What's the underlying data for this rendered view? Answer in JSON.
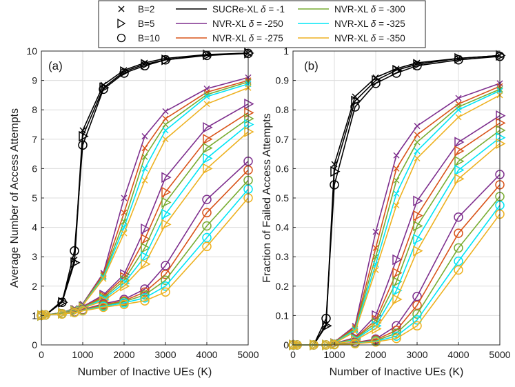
{
  "chart_data": [
    {
      "type": "line",
      "panel_label": "(a)",
      "xlabel": "Number of Inactive UEs (K)",
      "ylabel": "Average Number of Access Attempts",
      "x": [
        0,
        100,
        500,
        800,
        1000,
        1500,
        2000,
        2500,
        3000,
        4000,
        5000
      ],
      "xlim": [
        0,
        5000
      ],
      "ylim": [
        0,
        10
      ],
      "xticks": [
        "0",
        "1000",
        "2000",
        "3000",
        "4000",
        "5000"
      ],
      "yticks": [
        "0",
        "1",
        "2",
        "3",
        "4",
        "5",
        "6",
        "7",
        "8",
        "9",
        "10"
      ],
      "grid": true,
      "series": [
        {
          "scheme": "SUCRe-XL",
          "delta": "-1",
          "B": 2,
          "values": [
            1.0,
            1.02,
            1.5,
            2.9,
            7.3,
            8.85,
            9.35,
            9.6,
            9.75,
            9.88,
            9.93
          ]
        },
        {
          "scheme": "SUCRe-XL",
          "delta": "-1",
          "B": 5,
          "values": [
            1.0,
            1.02,
            1.45,
            2.8,
            7.1,
            8.75,
            9.3,
            9.55,
            9.7,
            9.87,
            9.93
          ]
        },
        {
          "scheme": "SUCRe-XL",
          "delta": "-1",
          "B": 10,
          "values": [
            1.0,
            1.02,
            1.45,
            3.2,
            6.8,
            8.7,
            9.25,
            9.5,
            9.7,
            9.85,
            9.92
          ]
        },
        {
          "scheme": "NVR-XL",
          "delta": "-250",
          "B": 2,
          "values": [
            1.0,
            1.02,
            1.1,
            1.25,
            1.4,
            2.45,
            5.0,
            7.1,
            7.95,
            8.72,
            9.1
          ]
        },
        {
          "scheme": "NVR-XL",
          "delta": "-275",
          "B": 2,
          "values": [
            1.0,
            1.02,
            1.1,
            1.24,
            1.38,
            2.4,
            4.5,
            6.7,
            7.7,
            8.6,
            9.0
          ]
        },
        {
          "scheme": "NVR-XL",
          "delta": "-300",
          "B": 2,
          "values": [
            1.0,
            1.02,
            1.09,
            1.23,
            1.37,
            2.35,
            4.2,
            6.4,
            7.5,
            8.52,
            8.95
          ]
        },
        {
          "scheme": "NVR-XL",
          "delta": "-325",
          "B": 2,
          "values": [
            1.0,
            1.02,
            1.09,
            1.22,
            1.36,
            2.3,
            4.0,
            6.0,
            7.3,
            8.45,
            8.88
          ]
        },
        {
          "scheme": "NVR-XL",
          "delta": "-350",
          "B": 2,
          "values": [
            1.0,
            1.02,
            1.08,
            1.2,
            1.35,
            2.25,
            3.8,
            5.6,
            7.0,
            8.2,
            8.75
          ]
        },
        {
          "scheme": "NVR-XL",
          "delta": "-250",
          "B": 5,
          "values": [
            1.0,
            1.02,
            1.08,
            1.18,
            1.3,
            1.7,
            2.4,
            3.95,
            5.7,
            7.4,
            8.2
          ]
        },
        {
          "scheme": "NVR-XL",
          "delta": "-275",
          "B": 5,
          "values": [
            1.0,
            1.02,
            1.08,
            1.17,
            1.28,
            1.65,
            2.3,
            3.6,
            5.2,
            7.0,
            7.9
          ]
        },
        {
          "scheme": "NVR-XL",
          "delta": "-300",
          "B": 5,
          "values": [
            1.0,
            1.02,
            1.08,
            1.16,
            1.27,
            1.6,
            2.2,
            3.3,
            4.85,
            6.7,
            7.7
          ]
        },
        {
          "scheme": "NVR-XL",
          "delta": "-325",
          "B": 5,
          "values": [
            1.0,
            1.02,
            1.07,
            1.15,
            1.26,
            1.55,
            2.1,
            3.0,
            4.45,
            6.35,
            7.5
          ]
        },
        {
          "scheme": "NVR-XL",
          "delta": "-350",
          "B": 5,
          "values": [
            1.0,
            1.02,
            1.07,
            1.14,
            1.25,
            1.5,
            2.0,
            2.75,
            4.1,
            6.0,
            7.25
          ]
        },
        {
          "scheme": "NVR-XL",
          "delta": "-250",
          "B": 10,
          "values": [
            1.0,
            1.02,
            1.06,
            1.12,
            1.2,
            1.4,
            1.55,
            1.9,
            2.7,
            4.95,
            6.25
          ]
        },
        {
          "scheme": "NVR-XL",
          "delta": "-275",
          "B": 10,
          "values": [
            1.0,
            1.02,
            1.06,
            1.11,
            1.19,
            1.37,
            1.5,
            1.8,
            2.4,
            4.5,
            5.95
          ]
        },
        {
          "scheme": "NVR-XL",
          "delta": "-300",
          "B": 10,
          "values": [
            1.0,
            1.02,
            1.06,
            1.11,
            1.18,
            1.34,
            1.47,
            1.7,
            2.2,
            4.05,
            5.6
          ]
        },
        {
          "scheme": "NVR-XL",
          "delta": "-325",
          "B": 10,
          "values": [
            1.0,
            1.02,
            1.05,
            1.1,
            1.17,
            1.31,
            1.43,
            1.6,
            2.0,
            3.65,
            5.3
          ]
        },
        {
          "scheme": "NVR-XL",
          "delta": "-350",
          "B": 10,
          "values": [
            1.0,
            1.02,
            1.05,
            1.1,
            1.16,
            1.28,
            1.38,
            1.5,
            1.8,
            3.35,
            5.0
          ]
        }
      ]
    },
    {
      "type": "line",
      "panel_label": "(b)",
      "xlabel": "Number of Inactive UEs (K)",
      "ylabel": "Fraction of Failed Access Attempts",
      "x": [
        0,
        100,
        500,
        800,
        1000,
        1500,
        2000,
        2500,
        3000,
        4000,
        5000
      ],
      "xlim": [
        0,
        5000
      ],
      "ylim": [
        0,
        1
      ],
      "xticks": [
        "0",
        "1000",
        "2000",
        "3000",
        "4000",
        "5000"
      ],
      "yticks": [
        "0",
        "0.1",
        "0.2",
        "0.3",
        "0.4",
        "0.5",
        "0.6",
        "0.7",
        "0.8",
        "0.9",
        "1"
      ],
      "grid": true,
      "series": [
        {
          "scheme": "SUCRe-XL",
          "delta": "-1",
          "B": 2,
          "values": [
            0.0,
            0.0,
            0.0,
            0.07,
            0.615,
            0.845,
            0.91,
            0.94,
            0.96,
            0.975,
            0.985
          ]
        },
        {
          "scheme": "SUCRe-XL",
          "delta": "-1",
          "B": 5,
          "values": [
            0.0,
            0.0,
            0.0,
            0.065,
            0.59,
            0.83,
            0.9,
            0.935,
            0.955,
            0.975,
            0.985
          ]
        },
        {
          "scheme": "SUCRe-XL",
          "delta": "-1",
          "B": 10,
          "values": [
            0.0,
            0.0,
            0.0,
            0.09,
            0.545,
            0.81,
            0.89,
            0.925,
            0.95,
            0.97,
            0.982
          ]
        },
        {
          "scheme": "NVR-XL",
          "delta": "-250",
          "B": 2,
          "values": [
            0.0,
            0.0,
            0.0,
            0.0,
            0.01,
            0.065,
            0.385,
            0.645,
            0.745,
            0.84,
            0.89
          ]
        },
        {
          "scheme": "NVR-XL",
          "delta": "-275",
          "B": 2,
          "values": [
            0.0,
            0.0,
            0.0,
            0.0,
            0.009,
            0.06,
            0.33,
            0.6,
            0.715,
            0.82,
            0.88
          ]
        },
        {
          "scheme": "NVR-XL",
          "delta": "-300",
          "B": 2,
          "values": [
            0.0,
            0.0,
            0.0,
            0.0,
            0.008,
            0.055,
            0.3,
            0.56,
            0.69,
            0.81,
            0.87
          ]
        },
        {
          "scheme": "NVR-XL",
          "delta": "-325",
          "B": 2,
          "values": [
            0.0,
            0.0,
            0.0,
            0.0,
            0.007,
            0.05,
            0.275,
            0.515,
            0.66,
            0.8,
            0.865
          ]
        },
        {
          "scheme": "NVR-XL",
          "delta": "-350",
          "B": 2,
          "values": [
            0.0,
            0.0,
            0.0,
            0.0,
            0.006,
            0.045,
            0.255,
            0.475,
            0.635,
            0.775,
            0.85
          ]
        },
        {
          "scheme": "NVR-XL",
          "delta": "-250",
          "B": 5,
          "values": [
            0.0,
            0.0,
            0.0,
            0.0,
            0.005,
            0.025,
            0.1,
            0.29,
            0.49,
            0.69,
            0.78
          ]
        },
        {
          "scheme": "NVR-XL",
          "delta": "-275",
          "B": 5,
          "values": [
            0.0,
            0.0,
            0.0,
            0.0,
            0.004,
            0.022,
            0.085,
            0.245,
            0.44,
            0.66,
            0.755
          ]
        },
        {
          "scheme": "NVR-XL",
          "delta": "-300",
          "B": 5,
          "values": [
            0.0,
            0.0,
            0.0,
            0.0,
            0.004,
            0.02,
            0.075,
            0.215,
            0.405,
            0.625,
            0.73
          ]
        },
        {
          "scheme": "NVR-XL",
          "delta": "-325",
          "B": 5,
          "values": [
            0.0,
            0.0,
            0.0,
            0.0,
            0.003,
            0.018,
            0.065,
            0.185,
            0.36,
            0.595,
            0.705
          ]
        },
        {
          "scheme": "NVR-XL",
          "delta": "-350",
          "B": 5,
          "values": [
            0.0,
            0.0,
            0.0,
            0.0,
            0.003,
            0.015,
            0.055,
            0.155,
            0.32,
            0.565,
            0.685
          ]
        },
        {
          "scheme": "NVR-XL",
          "delta": "-250",
          "B": 10,
          "values": [
            0.0,
            0.0,
            0.0,
            0.0,
            0.002,
            0.008,
            0.02,
            0.065,
            0.165,
            0.435,
            0.58
          ]
        },
        {
          "scheme": "NVR-XL",
          "delta": "-275",
          "B": 10,
          "values": [
            0.0,
            0.0,
            0.0,
            0.0,
            0.002,
            0.007,
            0.017,
            0.05,
            0.135,
            0.38,
            0.545
          ]
        },
        {
          "scheme": "NVR-XL",
          "delta": "-300",
          "B": 10,
          "values": [
            0.0,
            0.0,
            0.0,
            0.0,
            0.002,
            0.006,
            0.014,
            0.04,
            0.105,
            0.33,
            0.505
          ]
        },
        {
          "scheme": "NVR-XL",
          "delta": "-325",
          "B": 10,
          "values": [
            0.0,
            0.0,
            0.0,
            0.0,
            0.001,
            0.005,
            0.012,
            0.03,
            0.085,
            0.285,
            0.475
          ]
        },
        {
          "scheme": "NVR-XL",
          "delta": "-350",
          "B": 10,
          "values": [
            0.0,
            0.0,
            0.0,
            0.0,
            0.001,
            0.004,
            0.01,
            0.022,
            0.065,
            0.255,
            0.445
          ]
        }
      ]
    }
  ],
  "legend": {
    "markers": [
      {
        "label": "B=2",
        "marker": "x",
        "B": 2
      },
      {
        "label": "B=5",
        "marker": "triangle-right",
        "B": 5
      },
      {
        "label": "B=10",
        "marker": "circle",
        "B": 10
      }
    ],
    "schemes": [
      {
        "name": "SUCRe-XL",
        "delta_symbol": "δ",
        "delta": "= -1",
        "color": "#000000"
      },
      {
        "name": "NVR-XL",
        "delta_symbol": "δ",
        "delta": "= -250",
        "color": "#7E2F8E"
      },
      {
        "name": "NVR-XL",
        "delta_symbol": "δ",
        "delta": "= -275",
        "color": "#D95319"
      },
      {
        "name": "NVR-XL",
        "delta_symbol": "δ",
        "delta": "= -300",
        "color": "#77AC30"
      },
      {
        "name": "NVR-XL",
        "delta_symbol": "δ",
        "delta": "= -325",
        "color": "#00E5F5"
      },
      {
        "name": "NVR-XL",
        "delta_symbol": "δ",
        "delta": "= -350",
        "color": "#EDB120"
      }
    ]
  }
}
